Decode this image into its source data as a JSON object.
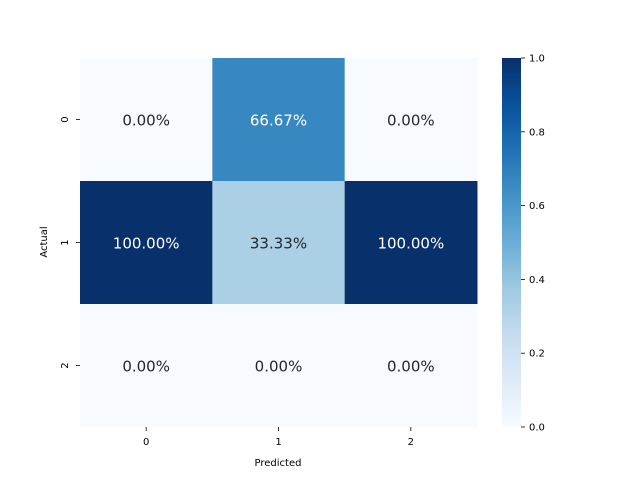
{
  "chart_data": {
    "type": "heatmap",
    "xlabel": "Predicted",
    "ylabel": "Actual",
    "x_categories": [
      "0",
      "1",
      "2"
    ],
    "y_categories": [
      "0",
      "1",
      "2"
    ],
    "values": [
      [
        0.0,
        0.6667,
        0.0
      ],
      [
        1.0,
        0.3333,
        1.0
      ],
      [
        0.0,
        0.0,
        0.0
      ]
    ],
    "cell_labels": [
      [
        "0.00%",
        "66.67%",
        "0.00%"
      ],
      [
        "100.00%",
        "33.33%",
        "100.00%"
      ],
      [
        "0.00%",
        "0.00%",
        "0.00%"
      ]
    ],
    "colorbar": {
      "range": [
        0,
        1
      ],
      "ticks": [
        "0.0",
        "0.2",
        "0.4",
        "0.6",
        "0.8",
        "1.0"
      ]
    },
    "colormap": "Blues",
    "colorbar_placement": "right"
  }
}
